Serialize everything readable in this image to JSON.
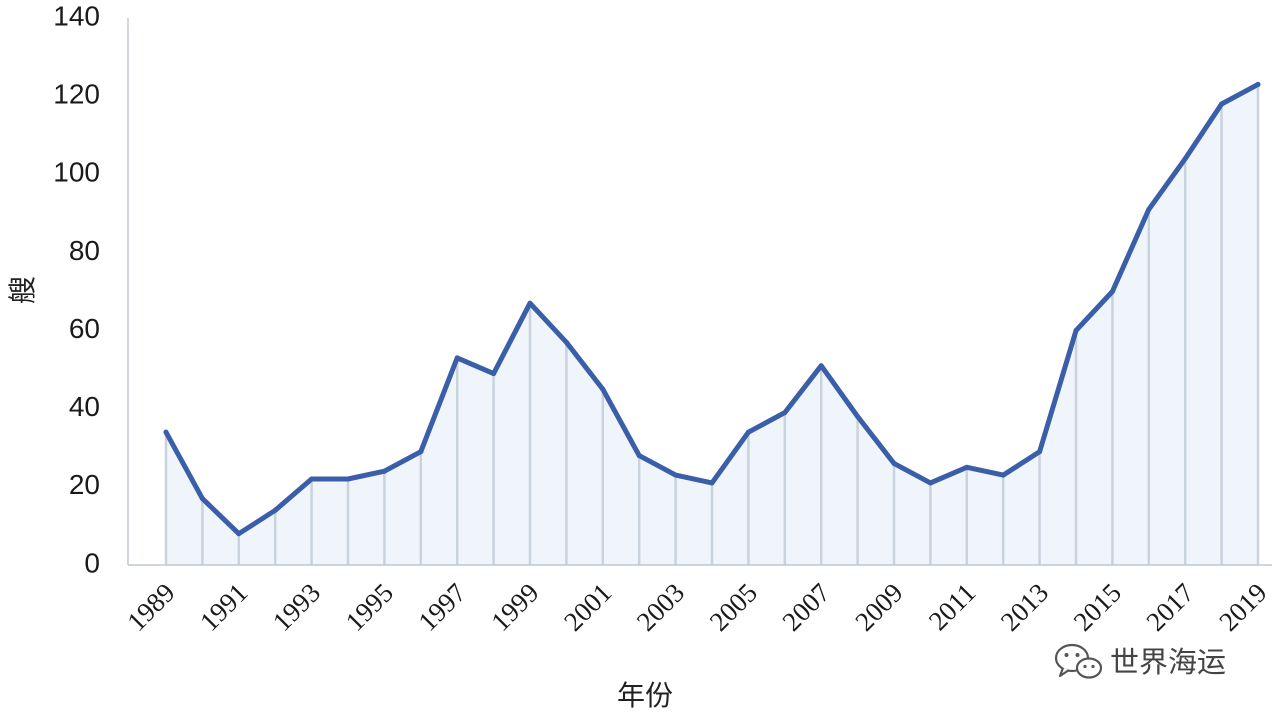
{
  "chart_data": {
    "type": "area",
    "x": [
      1989,
      1990,
      1991,
      1992,
      1993,
      1994,
      1995,
      1996,
      1997,
      1998,
      1999,
      2000,
      2001,
      2002,
      2003,
      2004,
      2005,
      2006,
      2007,
      2008,
      2009,
      2010,
      2011,
      2012,
      2013,
      2014,
      2015,
      2016,
      2017,
      2018,
      2019
    ],
    "values": [
      34,
      17,
      8,
      14,
      22,
      22,
      24,
      29,
      53,
      49,
      67,
      57,
      45,
      28,
      23,
      21,
      34,
      39,
      51,
      38,
      26,
      21,
      25,
      23,
      29,
      60,
      70,
      91,
      104,
      118,
      123
    ],
    "x_tick_labels": [
      "1989",
      "1991",
      "1993",
      "1995",
      "1997",
      "1999",
      "2001",
      "2003",
      "2005",
      "2007",
      "2009",
      "2011",
      "2013",
      "2015",
      "2017",
      "2019"
    ],
    "y_tick_labels": [
      "0",
      "20",
      "40",
      "60",
      "80",
      "100",
      "120",
      "140"
    ],
    "ylim": [
      0,
      140
    ],
    "xlabel": "年份",
    "ylabel": "艘",
    "grid": false,
    "colors": {
      "line": "#3a5ea8",
      "fill": "#f0f5fb",
      "drop_lines": "#c9d3de",
      "axis": "#c0c7cf"
    }
  },
  "watermark": {
    "text": "世界海运",
    "icon": "wechat-icon"
  }
}
